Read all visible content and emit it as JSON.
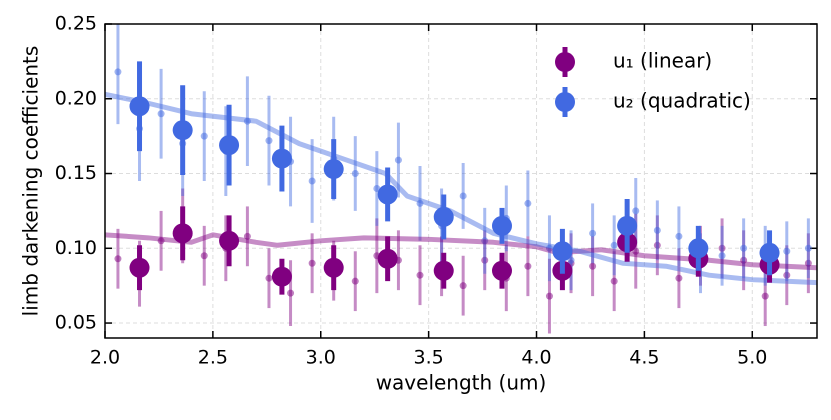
{
  "chart_data": {
    "type": "errorbar",
    "xlabel": "wavelength (um)",
    "ylabel": "limb darkening coefficients",
    "xlim": [
      2.0,
      5.3
    ],
    "ylim": [
      0.04,
      0.25
    ],
    "xticks": [
      {
        "value": 2.0,
        "label": "2.0"
      },
      {
        "value": 2.5,
        "label": "2.5"
      },
      {
        "value": 3.0,
        "label": "3.0"
      },
      {
        "value": 3.5,
        "label": "3.5"
      },
      {
        "value": 4.0,
        "label": "4.0"
      },
      {
        "value": 4.5,
        "label": "4.5"
      },
      {
        "value": 5.0,
        "label": "5.0"
      }
    ],
    "yticks": [
      {
        "value": 0.05,
        "label": "0.05"
      },
      {
        "value": 0.1,
        "label": "0.10"
      },
      {
        "value": 0.15,
        "label": "0.15"
      },
      {
        "value": 0.2,
        "label": "0.20"
      },
      {
        "value": 0.25,
        "label": "0.25"
      }
    ],
    "grid": true,
    "legend": "upper right",
    "series": [
      {
        "name": "u₁ (linear)",
        "color": "#800080",
        "x": [
          2.16,
          2.36,
          2.575,
          2.82,
          3.06,
          3.31,
          3.57,
          3.84,
          4.12,
          4.42,
          4.75,
          5.08
        ],
        "values": [
          0.087,
          0.11,
          0.105,
          0.081,
          0.087,
          0.093,
          0.085,
          0.085,
          0.085,
          0.104,
          0.093,
          0.089
        ],
        "errors": [
          0.015,
          0.018,
          0.017,
          0.012,
          0.015,
          0.015,
          0.012,
          0.012,
          0.013,
          0.013,
          0.012,
          0.012
        ],
        "points": {
          "x": [
            2.06,
            2.16,
            2.26,
            2.36,
            2.46,
            2.56,
            2.66,
            2.76,
            2.86,
            2.96,
            3.06,
            3.16,
            3.26,
            3.36,
            3.46,
            3.56,
            3.66,
            3.76,
            3.86,
            3.96,
            4.06,
            4.16,
            4.26,
            4.36,
            4.46,
            4.56,
            4.66,
            4.76,
            4.86,
            4.96,
            5.06,
            5.16,
            5.26
          ],
          "values": [
            0.093,
            0.083,
            0.105,
            0.115,
            0.095,
            0.1,
            0.108,
            0.08,
            0.07,
            0.09,
            0.085,
            0.078,
            0.095,
            0.092,
            0.082,
            0.088,
            0.075,
            0.092,
            0.08,
            0.088,
            0.068,
            0.09,
            0.088,
            0.078,
            0.098,
            0.102,
            0.08,
            0.095,
            0.1,
            0.092,
            0.068,
            0.082,
            0.09
          ],
          "errors": [
            0.02,
            0.022,
            0.02,
            0.025,
            0.02,
            0.022,
            0.02,
            0.02,
            0.022,
            0.02,
            0.02,
            0.02,
            0.025,
            0.02,
            0.02,
            0.02,
            0.02,
            0.02,
            0.022,
            0.02,
            0.025,
            0.02,
            0.02,
            0.02,
            0.025,
            0.02,
            0.02,
            0.02,
            0.02,
            0.02,
            0.02,
            0.02,
            0.02
          ]
        },
        "model": {
          "x": [
            2.0,
            2.2,
            2.4,
            2.5,
            2.7,
            2.8,
            3.0,
            3.2,
            3.5,
            3.8,
            4.0,
            4.1,
            4.3,
            4.5,
            4.8,
            5.0,
            5.3
          ],
          "values": [
            0.109,
            0.107,
            0.104,
            0.109,
            0.104,
            0.102,
            0.105,
            0.107,
            0.106,
            0.104,
            0.101,
            0.097,
            0.099,
            0.095,
            0.092,
            0.089,
            0.087
          ]
        }
      },
      {
        "name": "u₂ (quadratic)",
        "color": "#4169e1",
        "x": [
          2.16,
          2.36,
          2.575,
          2.82,
          3.06,
          3.31,
          3.57,
          3.84,
          4.12,
          4.42,
          4.75,
          5.08
        ],
        "values": [
          0.195,
          0.179,
          0.169,
          0.16,
          0.153,
          0.136,
          0.121,
          0.115,
          0.098,
          0.115,
          0.1,
          0.097
        ],
        "errors": [
          0.03,
          0.03,
          0.027,
          0.022,
          0.02,
          0.018,
          0.015,
          0.012,
          0.015,
          0.018,
          0.015,
          0.015
        ],
        "points": {
          "x": [
            2.06,
            2.16,
            2.26,
            2.36,
            2.46,
            2.56,
            2.66,
            2.76,
            2.86,
            2.96,
            3.06,
            3.16,
            3.26,
            3.36,
            3.46,
            3.56,
            3.66,
            3.76,
            3.86,
            3.96,
            4.06,
            4.16,
            4.26,
            4.36,
            4.46,
            4.56,
            4.66,
            4.76,
            4.86,
            4.96,
            5.06,
            5.16,
            5.26
          ],
          "values": [
            0.218,
            0.18,
            0.19,
            0.17,
            0.175,
            0.165,
            0.185,
            0.172,
            0.158,
            0.145,
            0.16,
            0.15,
            0.14,
            0.159,
            0.13,
            0.115,
            0.135,
            0.105,
            0.12,
            0.13,
            0.1,
            0.092,
            0.11,
            0.102,
            0.125,
            0.112,
            0.108,
            0.09,
            0.095,
            0.1,
            0.095,
            0.098,
            0.1
          ],
          "errors": [
            0.035,
            0.035,
            0.03,
            0.035,
            0.03,
            0.03,
            0.03,
            0.03,
            0.03,
            0.028,
            0.028,
            0.025,
            0.025,
            0.025,
            0.025,
            0.025,
            0.022,
            0.022,
            0.022,
            0.022,
            0.022,
            0.02,
            0.02,
            0.02,
            0.022,
            0.02,
            0.02,
            0.02,
            0.02,
            0.02,
            0.02,
            0.02,
            0.02
          ]
        },
        "model": {
          "x": [
            2.0,
            2.2,
            2.4,
            2.7,
            2.9,
            3.1,
            3.3,
            3.4,
            3.6,
            3.8,
            4.0,
            4.2,
            4.4,
            4.6,
            4.8,
            5.0,
            5.3
          ],
          "values": [
            0.203,
            0.197,
            0.19,
            0.185,
            0.17,
            0.16,
            0.15,
            0.135,
            0.125,
            0.11,
            0.103,
            0.098,
            0.09,
            0.088,
            0.082,
            0.079,
            0.077
          ]
        }
      }
    ]
  }
}
